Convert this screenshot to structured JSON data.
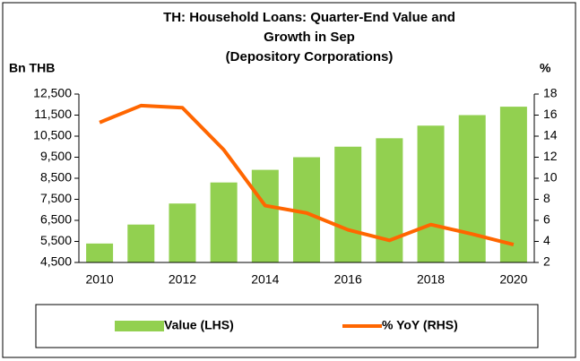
{
  "chart_data": {
    "type": "bar_line",
    "title": [
      "TH: Household Loans: Quarter-End Value and",
      "Growth in Sep",
      "(Depository Corporations)"
    ],
    "ylabel": "Bn THB",
    "y2label": "%",
    "categories": [
      "2010",
      null,
      "2012",
      null,
      "2014",
      null,
      "2016",
      null,
      "2018",
      null,
      "2020"
    ],
    "series": [
      {
        "name": "Value (LHS)",
        "type": "bar",
        "color": "#92d050",
        "axis": "y",
        "values": [
          5400,
          6300,
          7300,
          8300,
          8900,
          9500,
          10000,
          10400,
          11000,
          11500,
          11900
        ]
      },
      {
        "name": "% YoY (RHS)",
        "type": "line",
        "color": "#ff6600",
        "axis": "y2",
        "values": [
          15.3,
          16.9,
          16.7,
          12.7,
          7.4,
          6.7,
          5.1,
          4.1,
          5.6,
          4.7,
          3.7
        ]
      }
    ],
    "ylim": [
      4500,
      12500
    ],
    "yticks": [
      {
        "value": 4500,
        "label": "4,500"
      },
      {
        "value": 5500,
        "label": "5,500"
      },
      {
        "value": 6500,
        "label": "6,500"
      },
      {
        "value": 7500,
        "label": "7,500"
      },
      {
        "value": 8500,
        "label": "8,500"
      },
      {
        "value": 9500,
        "label": "9,500"
      },
      {
        "value": 10500,
        "label": "10,500"
      },
      {
        "value": 11500,
        "label": "11,500"
      },
      {
        "value": 12500,
        "label": "12,500"
      }
    ],
    "y2lim": [
      2,
      18
    ],
    "y2ticks": [
      2,
      4,
      6,
      8,
      10,
      12,
      14,
      16,
      18
    ],
    "grid": false,
    "legend": "bottom"
  }
}
